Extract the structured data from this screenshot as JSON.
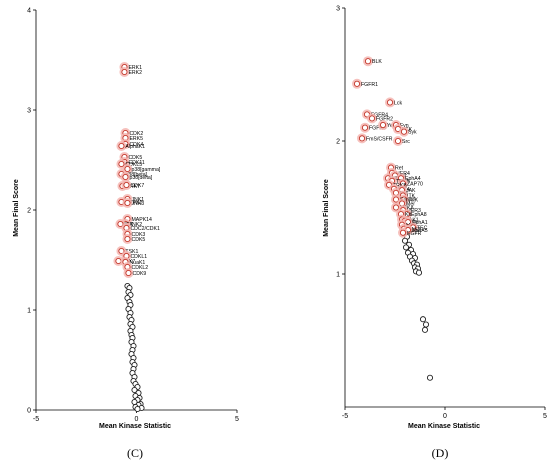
{
  "chart_data": [
    {
      "type": "scatter",
      "panel_label": "(C)",
      "xlabel": "Mean Kinase Statistic",
      "ylabel": "Mean Final Score",
      "xlim": [
        -5,
        5
      ],
      "ylim": [
        0,
        4
      ],
      "xticks": [
        -5,
        0,
        5
      ],
      "yticks": [
        0,
        1,
        2,
        3,
        4
      ],
      "grid": false,
      "highlight_color": "#f4b6b2",
      "marker_edge_color": "#222222",
      "labeled_edge_color": "#c2362a",
      "labeled_points": [
        {
          "label": "ERK1",
          "x": -0.6,
          "y": 3.43
        },
        {
          "label": "ERK2",
          "x": -0.6,
          "y": 3.38
        },
        {
          "label": "CDK2",
          "x": -0.55,
          "y": 2.77
        },
        {
          "label": "ERK5",
          "x": -0.55,
          "y": 2.72
        },
        {
          "label": "CDK4",
          "x": -0.55,
          "y": 2.66
        },
        {
          "label": "AlphaK1",
          "x": -0.75,
          "y": 2.64
        },
        {
          "label": "CDK5",
          "x": -0.6,
          "y": 2.53
        },
        {
          "label": "CDK11",
          "x": -0.6,
          "y": 2.48
        },
        {
          "label": "CDKL5",
          "x": -0.75,
          "y": 2.46
        },
        {
          "label": "p38[gamma]",
          "x": -0.45,
          "y": 2.41
        },
        {
          "label": "p38[beta]",
          "x": -0.75,
          "y": 2.36
        },
        {
          "label": "p38[delta]",
          "x": -0.55,
          "y": 2.33
        },
        {
          "label": "ERK7",
          "x": -0.7,
          "y": 2.24
        },
        {
          "label": "CDK7",
          "x": -0.5,
          "y": 2.25
        },
        {
          "label": "JNK1",
          "x": -0.45,
          "y": 2.11
        },
        {
          "label": "DAPK2",
          "x": -0.75,
          "y": 2.08
        },
        {
          "label": "JNK3",
          "x": -0.45,
          "y": 2.07
        },
        {
          "label": "MAPK14",
          "x": -0.45,
          "y": 1.91
        },
        {
          "label": "JNK2",
          "x": -0.55,
          "y": 1.86
        },
        {
          "label": "ICK",
          "x": -0.8,
          "y": 1.86
        },
        {
          "label": "CDC2/CDK1",
          "x": -0.5,
          "y": 1.82
        },
        {
          "label": "CDK3",
          "x": -0.45,
          "y": 1.76
        },
        {
          "label": "CDK5",
          "x": -0.45,
          "y": 1.71
        },
        {
          "label": "TSK1",
          "x": -0.75,
          "y": 1.59
        },
        {
          "label": "CDKL1",
          "x": -0.5,
          "y": 1.54
        },
        {
          "label": "PAK7",
          "x": -0.9,
          "y": 1.49
        },
        {
          "label": "NuaK1",
          "x": -0.55,
          "y": 1.48
        },
        {
          "label": "CDKL2",
          "x": -0.45,
          "y": 1.43
        },
        {
          "label": "CDK9",
          "x": -0.4,
          "y": 1.37
        }
      ],
      "unlabeled_points": [
        {
          "x": -0.45,
          "y": 1.24
        },
        {
          "x": -0.35,
          "y": 1.22
        },
        {
          "x": -0.4,
          "y": 1.18
        },
        {
          "x": -0.3,
          "y": 1.15
        },
        {
          "x": -0.45,
          "y": 1.12
        },
        {
          "x": -0.35,
          "y": 1.08
        },
        {
          "x": -0.3,
          "y": 1.05
        },
        {
          "x": -0.4,
          "y": 1.01
        },
        {
          "x": -0.3,
          "y": 0.97
        },
        {
          "x": -0.35,
          "y": 0.93
        },
        {
          "x": -0.25,
          "y": 0.9
        },
        {
          "x": -0.3,
          "y": 0.86
        },
        {
          "x": -0.2,
          "y": 0.83
        },
        {
          "x": -0.3,
          "y": 0.79
        },
        {
          "x": -0.25,
          "y": 0.75
        },
        {
          "x": -0.2,
          "y": 0.72
        },
        {
          "x": -0.25,
          "y": 0.68
        },
        {
          "x": -0.15,
          "y": 0.64
        },
        {
          "x": -0.2,
          "y": 0.6
        },
        {
          "x": -0.25,
          "y": 0.56
        },
        {
          "x": -0.15,
          "y": 0.52
        },
        {
          "x": -0.2,
          "y": 0.48
        },
        {
          "x": -0.1,
          "y": 0.45
        },
        {
          "x": -0.15,
          "y": 0.41
        },
        {
          "x": -0.2,
          "y": 0.37
        },
        {
          "x": -0.1,
          "y": 0.33
        },
        {
          "x": -0.15,
          "y": 0.29
        },
        {
          "x": -0.05,
          "y": 0.26
        },
        {
          "x": 0.05,
          "y": 0.23
        },
        {
          "x": -0.1,
          "y": 0.2
        },
        {
          "x": 0.1,
          "y": 0.17
        },
        {
          "x": -0.05,
          "y": 0.14
        },
        {
          "x": 0.15,
          "y": 0.12
        },
        {
          "x": 0.05,
          "y": 0.1
        },
        {
          "x": -0.1,
          "y": 0.08
        },
        {
          "x": 0.2,
          "y": 0.06
        },
        {
          "x": 0.1,
          "y": 0.05
        },
        {
          "x": -0.05,
          "y": 0.03
        },
        {
          "x": 0.25,
          "y": 0.02
        },
        {
          "x": 0.05,
          "y": 0.01
        }
      ]
    },
    {
      "type": "scatter",
      "panel_label": "(D)",
      "xlabel": "Mean Kinase Statistic",
      "ylabel": "Mean Final Score",
      "xlim": [
        -5,
        5
      ],
      "ylim": [
        0,
        3
      ],
      "xticks": [
        -5,
        0,
        5
      ],
      "yticks": [
        1,
        2,
        3
      ],
      "grid": false,
      "highlight_color": "#f4b6b2",
      "marker_edge_color": "#222222",
      "labeled_edge_color": "#c2362a",
      "labeled_points": [
        {
          "label": "BLK",
          "x": -3.85,
          "y": 2.6
        },
        {
          "label": "FGFR1",
          "x": -4.4,
          "y": 2.43
        },
        {
          "label": "Lck",
          "x": -2.75,
          "y": 2.29
        },
        {
          "label": "FGFR4",
          "x": -3.9,
          "y": 2.2
        },
        {
          "label": "FGFR2",
          "x": -3.65,
          "y": 2.17
        },
        {
          "label": "FGFR3",
          "x": -4.0,
          "y": 2.1
        },
        {
          "label": "Yes",
          "x": -3.1,
          "y": 2.12
        },
        {
          "label": "Fyn",
          "x": -2.45,
          "y": 2.12
        },
        {
          "label": "LCK",
          "x": -2.35,
          "y": 2.09
        },
        {
          "label": "Syk",
          "x": -2.05,
          "y": 2.07
        },
        {
          "label": "FmS/CSFR",
          "x": -4.15,
          "y": 2.02
        },
        {
          "label": "Src",
          "x": -2.35,
          "y": 2.0
        },
        {
          "label": "Ret",
          "x": -2.7,
          "y": 1.8
        },
        {
          "label": "HER4",
          "x": -2.65,
          "y": 1.76
        },
        {
          "label": "Axl",
          "x": -2.5,
          "y": 1.74
        },
        {
          "label": "HER2",
          "x": -2.85,
          "y": 1.72
        },
        {
          "label": "EphA4",
          "x": -2.2,
          "y": 1.72
        },
        {
          "label": "TRKB",
          "x": -2.65,
          "y": 1.7
        },
        {
          "label": "ZAP70",
          "x": -2.1,
          "y": 1.68
        },
        {
          "label": "TRKB",
          "x": -2.8,
          "y": 1.67
        },
        {
          "label": "FLT4",
          "x": -2.55,
          "y": 1.64
        },
        {
          "label": "JAK",
          "x": -2.15,
          "y": 1.63
        },
        {
          "label": "Fer",
          "x": -2.45,
          "y": 1.61
        },
        {
          "label": "ITK",
          "x": -2.1,
          "y": 1.59
        },
        {
          "label": "TXK",
          "x": -2.05,
          "y": 1.56
        },
        {
          "label": "EphA7",
          "x": -2.45,
          "y": 1.56
        },
        {
          "label": "Mer",
          "x": -2.15,
          "y": 1.53
        },
        {
          "label": "TRKA",
          "x": -2.45,
          "y": 1.5
        },
        {
          "label": "HER3",
          "x": -2.1,
          "y": 1.48
        },
        {
          "label": "EphA8",
          "x": -1.9,
          "y": 1.45
        },
        {
          "label": "Kit",
          "x": -2.2,
          "y": 1.45
        },
        {
          "label": "FAK1",
          "x": -2.15,
          "y": 1.41
        },
        {
          "label": "Tec",
          "x": -2.0,
          "y": 1.4
        },
        {
          "label": "EphA1",
          "x": -1.85,
          "y": 1.39
        },
        {
          "label": "MKK",
          "x": -2.15,
          "y": 1.37
        },
        {
          "label": "TEC",
          "x": -1.6,
          "y": 1.35
        },
        {
          "label": "FAK2",
          "x": -2.05,
          "y": 1.34
        },
        {
          "label": "EphA5",
          "x": -1.85,
          "y": 1.33
        },
        {
          "label": "EGFR",
          "x": -2.1,
          "y": 1.31
        }
      ],
      "unlabeled_points": [
        {
          "x": -1.9,
          "y": 1.28
        },
        {
          "x": -2.0,
          "y": 1.25
        },
        {
          "x": -1.8,
          "y": 1.22
        },
        {
          "x": -1.95,
          "y": 1.2
        },
        {
          "x": -1.7,
          "y": 1.18
        },
        {
          "x": -1.85,
          "y": 1.16
        },
        {
          "x": -1.6,
          "y": 1.15
        },
        {
          "x": -1.75,
          "y": 1.13
        },
        {
          "x": -1.5,
          "y": 1.12
        },
        {
          "x": -1.65,
          "y": 1.1
        },
        {
          "x": -1.55,
          "y": 1.08
        },
        {
          "x": -1.4,
          "y": 1.07
        },
        {
          "x": -1.5,
          "y": 1.05
        },
        {
          "x": -1.35,
          "y": 1.04
        },
        {
          "x": -1.45,
          "y": 1.02
        },
        {
          "x": -1.3,
          "y": 1.01
        },
        {
          "x": -1.1,
          "y": 0.66
        },
        {
          "x": -0.95,
          "y": 0.62
        },
        {
          "x": -1.0,
          "y": 0.58
        },
        {
          "x": -0.75,
          "y": 0.22
        }
      ]
    }
  ]
}
